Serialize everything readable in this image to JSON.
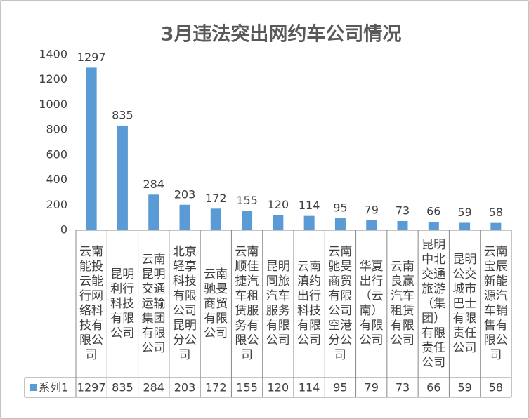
{
  "chart_data": {
    "type": "bar",
    "title": "3月违法突出网约车公司情况",
    "categories": [
      "云南能投云能行网络科技有限公司",
      "昆明利行科技有限公司",
      "云南昆明交通运输集团有限公司",
      "北京轻享科技有限公司昆明分公司",
      "云南驰旻商贸有限公司",
      "云南顺佳捷汽车租赁服务有限公司",
      "昆明同旅汽车服务有限公司",
      "云南滇约出行科技有限公司",
      "云南驰旻商贸有限公司空港分公司",
      "华夏出行（云南）有限公司",
      "云南良赢汽车租赁有限公司",
      "昆明中北交通旅游（集团）有限责任公司",
      "昆明公交城市巴士有限责任公司",
      "云南宝辰新能源汽车销售有限公司"
    ],
    "series": [
      {
        "name": "系列1",
        "color": "#5b9bd5",
        "values": [
          1297,
          835,
          284,
          203,
          172,
          155,
          120,
          114,
          95,
          79,
          73,
          66,
          59,
          58
        ]
      }
    ],
    "ylim": [
      0,
      1400
    ],
    "yticks": [
      0,
      200,
      400,
      600,
      800,
      1000,
      1200,
      1400
    ],
    "grid": false,
    "data_table": true
  }
}
